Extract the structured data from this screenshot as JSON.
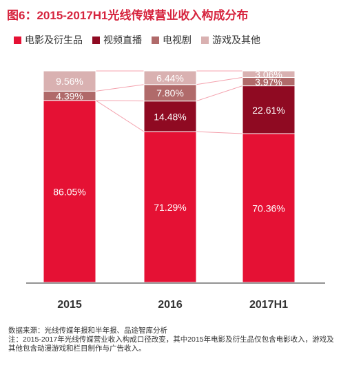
{
  "header": {
    "title": "图6：2015-2017H1光线传媒营业收入构成分布"
  },
  "chart_data": {
    "type": "bar",
    "stacked": true,
    "normalized_percent": true,
    "categories": [
      "2015",
      "2016",
      "2017H1"
    ],
    "series": [
      {
        "name": "电影及衍生品",
        "color": "#e51134",
        "values": [
          86.05,
          71.29,
          70.36
        ],
        "labels": [
          "86.05%",
          "71.29%",
          "70.36%"
        ]
      },
      {
        "name": "视频直播",
        "color": "#8f0a22",
        "values": [
          0,
          14.48,
          22.61
        ],
        "labels": [
          "",
          "14.48%",
          "22.61%"
        ]
      },
      {
        "name": "电视剧",
        "color": "#b06a6a",
        "values": [
          4.39,
          7.8,
          3.97
        ],
        "labels": [
          "4.39%",
          "7.80%",
          "3.97%"
        ]
      },
      {
        "name": "游戏及其他",
        "color": "#d9b1b1",
        "values": [
          9.56,
          6.44,
          3.06
        ],
        "labels": [
          "9.56%",
          "6.44%",
          "3.06%"
        ]
      }
    ],
    "ylim": [
      0,
      100
    ],
    "grid": false,
    "legend_position": "top",
    "connector_color": "#f4a1ad"
  },
  "footer": {
    "source": "数据来源：光线传媒年报和半年报、品途智库分析",
    "note": "注：2015-2017年光线传媒营业收入构成口径改变，其中2015年电影及衍生品仅包含电影收入，游戏及其他包含动漫游戏和栏目制作与广告收入。"
  }
}
